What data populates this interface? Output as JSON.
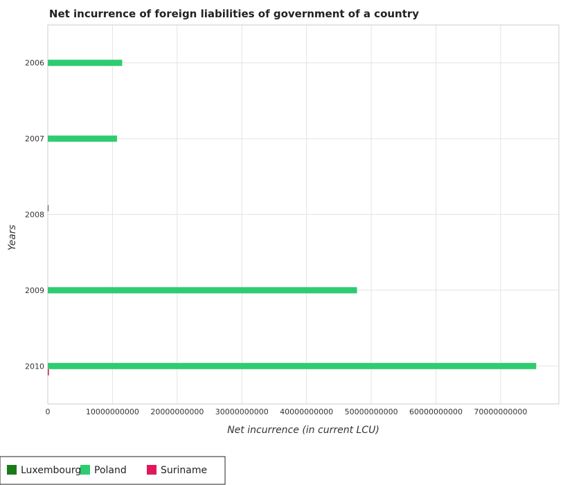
{
  "chart_data": {
    "type": "bar",
    "orientation": "horizontal",
    "title": "Net incurrence of foreign liabilities of government of a country",
    "xlabel": "Net incurrence (in current LCU)",
    "ylabel": "Years",
    "categories": [
      "2006",
      "2007",
      "2008",
      "2009",
      "2010"
    ],
    "series": [
      {
        "name": "Luxembourg",
        "color": "#1a7a1a",
        "values": [
          0,
          0,
          110000000,
          0,
          0
        ]
      },
      {
        "name": "Poland",
        "color": "#2ecc71",
        "values": [
          11500000000,
          10700000000,
          0,
          47800000000,
          75500000000
        ]
      },
      {
        "name": "Suriname",
        "color": "#e0185a",
        "values": [
          0,
          0,
          0,
          0,
          170000000
        ]
      }
    ],
    "xticks": [
      0,
      10000000000,
      20000000000,
      30000000000,
      40000000000,
      50000000000,
      60000000000,
      70000000000
    ],
    "xtick_labels": [
      "0",
      "10000000000",
      "20000000000",
      "30000000000",
      "40000000000",
      "50000000000",
      "60000000000",
      "70000000000"
    ],
    "xlim": [
      0,
      79000000000
    ],
    "grid": true,
    "legend": "bottom-left"
  }
}
